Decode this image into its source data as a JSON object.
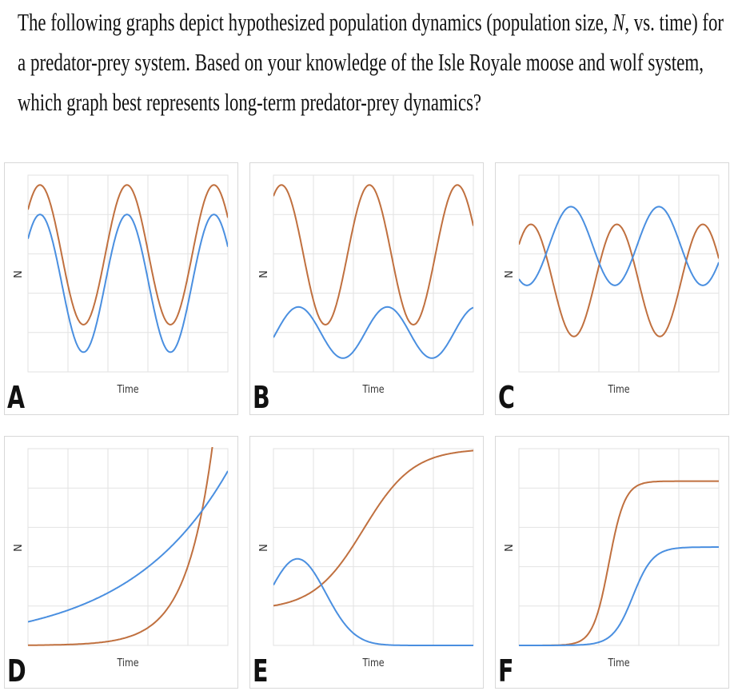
{
  "question": {
    "line1_before": "The following graphs depict hypothesized population dynamics (population size, ",
    "line1_var": "N",
    "line1_after": ", vs. time) for",
    "line2": "a predator-prey system.  Based on your knowledge of the Isle Royale moose and wolf system,",
    "line3": "which graph best represents long-term predator-prey dynamics?"
  },
  "panels": [
    {
      "letter": "A",
      "y_label": "N",
      "x_label": "Time"
    },
    {
      "letter": "B",
      "y_label": "N",
      "x_label": "Time"
    },
    {
      "letter": "C",
      "y_label": "N",
      "x_label": "Time"
    },
    {
      "letter": "D",
      "y_label": "N",
      "x_label": "Time"
    },
    {
      "letter": "E",
      "y_label": "N",
      "x_label": "Time"
    },
    {
      "letter": "F",
      "y_label": "N",
      "x_label": "Time"
    }
  ]
}
